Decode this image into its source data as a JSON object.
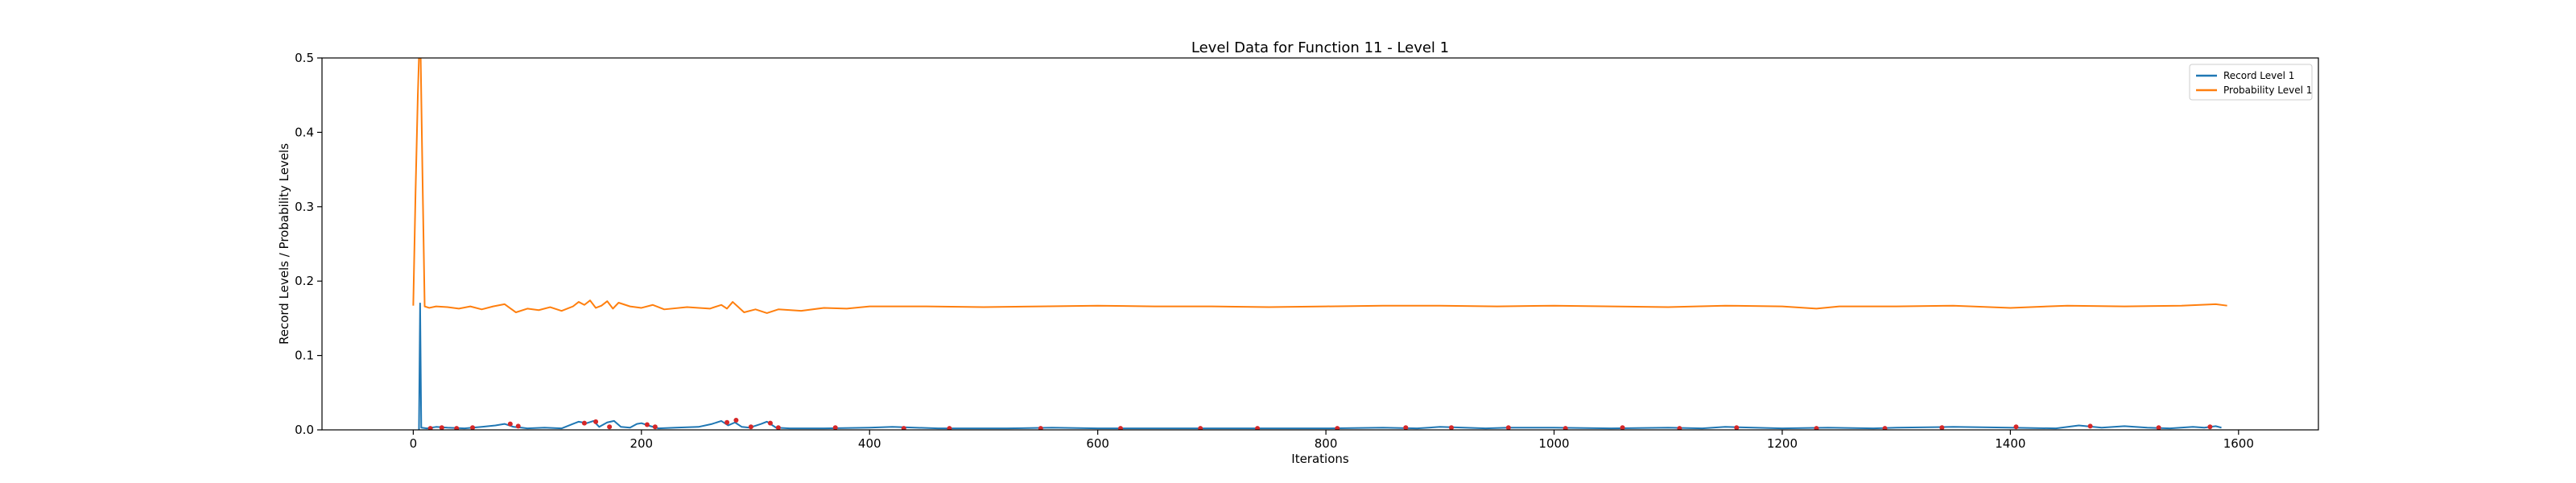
{
  "chart_data": {
    "type": "line",
    "title": "Level Data for Function 11 - Level 1",
    "xlabel": "Iterations",
    "ylabel": "Record Levels / Probability Levels",
    "xlim": [
      -80,
      1670
    ],
    "ylim": [
      0.0,
      0.5
    ],
    "xticks": [
      0,
      200,
      400,
      600,
      800,
      1000,
      1200,
      1400,
      1600
    ],
    "yticks": [
      0.0,
      0.1,
      0.2,
      0.3,
      0.4,
      0.5
    ],
    "xtick_labels": [
      "0",
      "200",
      "400",
      "600",
      "800",
      "1000",
      "1200",
      "1400",
      "1600"
    ],
    "ytick_labels": [
      "0.0",
      "0.1",
      "0.2",
      "0.3",
      "0.4",
      "0.5"
    ],
    "grid": false,
    "legend_position": "top-right",
    "series": [
      {
        "name": "Record Level 1",
        "color": "#1f77b4",
        "x": [
          5,
          6,
          7,
          12,
          20,
          30,
          45,
          60,
          72,
          80,
          88,
          95,
          100,
          115,
          130,
          140,
          145,
          152,
          158,
          163,
          170,
          176,
          182,
          190,
          196,
          200,
          208,
          215,
          230,
          250,
          262,
          270,
          276,
          282,
          288,
          295,
          305,
          310,
          318,
          330,
          360,
          400,
          420,
          440,
          460,
          480,
          520,
          560,
          600,
          650,
          700,
          750,
          800,
          850,
          880,
          900,
          940,
          960,
          1000,
          1050,
          1100,
          1130,
          1150,
          1200,
          1240,
          1280,
          1300,
          1350,
          1400,
          1440,
          1460,
          1480,
          1500,
          1520,
          1540,
          1560,
          1570,
          1580,
          1585
        ],
        "y": [
          0.0,
          0.17,
          0.003,
          0.002,
          0.004,
          0.003,
          0.002,
          0.004,
          0.006,
          0.008,
          0.004,
          0.003,
          0.002,
          0.003,
          0.002,
          0.008,
          0.011,
          0.009,
          0.012,
          0.004,
          0.01,
          0.012,
          0.004,
          0.003,
          0.008,
          0.009,
          0.005,
          0.002,
          0.003,
          0.004,
          0.008,
          0.012,
          0.006,
          0.01,
          0.004,
          0.003,
          0.008,
          0.011,
          0.003,
          0.002,
          0.002,
          0.003,
          0.004,
          0.003,
          0.002,
          0.002,
          0.002,
          0.003,
          0.002,
          0.002,
          0.002,
          0.002,
          0.002,
          0.003,
          0.002,
          0.004,
          0.002,
          0.003,
          0.003,
          0.002,
          0.003,
          0.002,
          0.004,
          0.002,
          0.003,
          0.002,
          0.003,
          0.004,
          0.003,
          0.002,
          0.006,
          0.003,
          0.005,
          0.003,
          0.002,
          0.004,
          0.003,
          0.005,
          0.003
        ]
      },
      {
        "name": "Probability Level 1",
        "color": "#ff7f0e",
        "x": [
          0,
          2,
          4,
          6,
          8,
          10,
          14,
          20,
          30,
          40,
          50,
          60,
          70,
          80,
          90,
          100,
          110,
          120,
          130,
          140,
          145,
          150,
          155,
          160,
          165,
          170,
          175,
          180,
          190,
          200,
          210,
          220,
          240,
          260,
          270,
          275,
          280,
          285,
          290,
          300,
          310,
          320,
          340,
          360,
          380,
          400,
          450,
          500,
          550,
          600,
          650,
          700,
          750,
          800,
          850,
          900,
          950,
          1000,
          1050,
          1100,
          1150,
          1200,
          1230,
          1250,
          1300,
          1350,
          1400,
          1450,
          1500,
          1550,
          1580,
          1590
        ],
        "y": [
          0.167,
          0.32,
          0.45,
          0.55,
          0.35,
          0.166,
          0.164,
          0.166,
          0.165,
          0.163,
          0.166,
          0.162,
          0.166,
          0.169,
          0.158,
          0.163,
          0.161,
          0.165,
          0.16,
          0.166,
          0.172,
          0.168,
          0.174,
          0.164,
          0.167,
          0.173,
          0.163,
          0.171,
          0.166,
          0.164,
          0.168,
          0.162,
          0.165,
          0.163,
          0.168,
          0.163,
          0.172,
          0.165,
          0.158,
          0.162,
          0.157,
          0.162,
          0.16,
          0.164,
          0.163,
          0.166,
          0.166,
          0.165,
          0.166,
          0.167,
          0.166,
          0.166,
          0.165,
          0.166,
          0.167,
          0.167,
          0.166,
          0.167,
          0.166,
          0.165,
          0.167,
          0.166,
          0.163,
          0.166,
          0.166,
          0.167,
          0.164,
          0.167,
          0.166,
          0.167,
          0.169,
          0.167
        ]
      }
    ],
    "markers": {
      "color": "#d62728",
      "x": [
        15,
        25,
        38,
        52,
        85,
        92,
        150,
        160,
        172,
        205,
        212,
        275,
        283,
        296,
        313,
        320,
        370,
        430,
        470,
        550,
        620,
        690,
        740,
        810,
        870,
        910,
        960,
        1010,
        1060,
        1110,
        1160,
        1230,
        1290,
        1340,
        1405,
        1470,
        1530,
        1575
      ],
      "y": [
        0.002,
        0.003,
        0.002,
        0.003,
        0.008,
        0.005,
        0.009,
        0.011,
        0.004,
        0.007,
        0.004,
        0.01,
        0.013,
        0.004,
        0.009,
        0.003,
        0.003,
        0.002,
        0.002,
        0.002,
        0.002,
        0.002,
        0.002,
        0.002,
        0.003,
        0.003,
        0.003,
        0.002,
        0.003,
        0.002,
        0.003,
        0.002,
        0.002,
        0.003,
        0.004,
        0.005,
        0.003,
        0.004
      ]
    }
  }
}
